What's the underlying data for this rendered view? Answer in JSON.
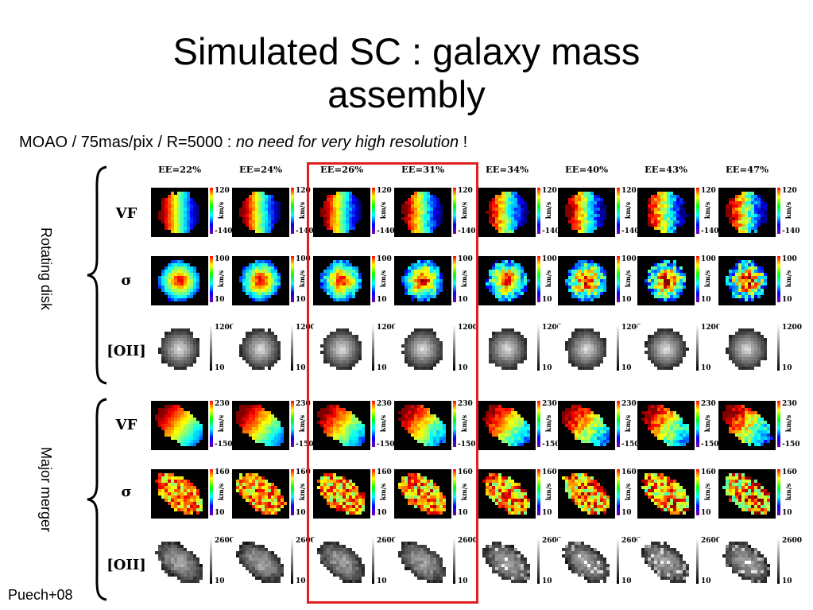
{
  "title_line1": "Simulated SC : galaxy mass",
  "title_line2": "assembly",
  "subtitle_prefix": "MOAO / 75mas/pix / R=5000 : ",
  "subtitle_italic": "no need for very high resolution",
  "subtitle_suffix": " !",
  "group_labels": [
    "Rotating disk",
    "Major merger"
  ],
  "credit": "Puech+08",
  "columns": [
    "EE=22%",
    "EE=24%",
    "EE=26%",
    "EE=31%",
    "EE=34%",
    "EE=40%",
    "EE=43%",
    "EE=47%"
  ],
  "highlighted_columns": [
    "EE=26%",
    "EE=31%"
  ],
  "rows": [
    {
      "label": "VF",
      "max": "120",
      "min": "-140",
      "unit": "km/s",
      "scale": "spectral",
      "group": "Rotating disk",
      "map": "disk-velocity"
    },
    {
      "label": "σ",
      "max": "100",
      "min": "10",
      "unit": "km/s",
      "scale": "spectral",
      "group": "Rotating disk",
      "map": "disk-dispersion"
    },
    {
      "label": "[OII]",
      "max": "1200",
      "min": "10",
      "unit": "",
      "scale": "grey",
      "group": "Rotating disk",
      "map": "disk-flux"
    },
    {
      "label": "VF",
      "max": "230",
      "min": "-150",
      "unit": "km/s",
      "scale": "spectral",
      "group": "Major merger",
      "map": "merger-velocity"
    },
    {
      "label": "σ",
      "max": "160",
      "min": "10",
      "unit": "km/s",
      "scale": "spectral",
      "group": "Major merger",
      "map": "merger-dispersion"
    },
    {
      "label": "[OII]",
      "max": "2600",
      "min": "10",
      "unit": "",
      "scale": "grey",
      "group": "Major merger",
      "map": "merger-flux"
    }
  ],
  "colors": {
    "highlight_box": "#e02020",
    "map_background": "#000000"
  }
}
